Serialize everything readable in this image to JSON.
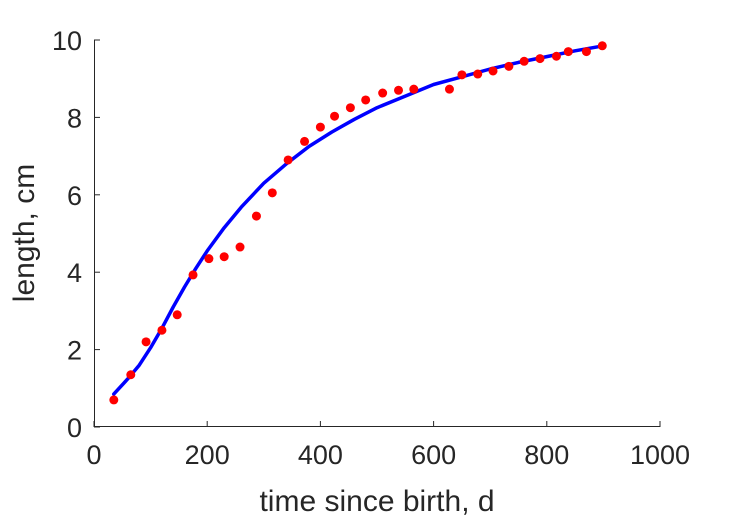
{
  "chart_data": {
    "type": "scatter",
    "xlabel": "time since birth, d",
    "ylabel": "length, cm",
    "xlim": [
      0,
      1000
    ],
    "ylim": [
      0,
      10
    ],
    "xticks": [
      0,
      200,
      400,
      600,
      800,
      1000
    ],
    "yticks": [
      0,
      2,
      4,
      6,
      8,
      10
    ],
    "grid": false,
    "colors": {
      "points": "#ff0000",
      "line": "#0000ff",
      "axes": "#262626"
    },
    "series": [
      {
        "type": "scatter",
        "x": [
          35,
          65,
          92,
          120,
          147,
          175,
          203,
          230,
          258,
          287,
          315,
          343,
          372,
          400,
          425,
          453,
          480,
          510,
          538,
          565,
          628,
          650,
          678,
          705,
          733,
          760,
          788,
          817,
          838,
          870,
          898
        ],
        "y": [
          0.7,
          1.35,
          2.2,
          2.5,
          2.9,
          3.93,
          4.35,
          4.4,
          4.65,
          5.45,
          6.05,
          6.9,
          7.38,
          7.75,
          8.03,
          8.25,
          8.45,
          8.63,
          8.7,
          8.73,
          8.73,
          9.1,
          9.12,
          9.2,
          9.32,
          9.45,
          9.52,
          9.58,
          9.7,
          9.7,
          9.85
        ]
      },
      {
        "type": "line",
        "x": [
          35,
          60,
          80,
          100,
          120,
          140,
          160,
          180,
          200,
          230,
          260,
          300,
          340,
          380,
          420,
          460,
          500,
          550,
          600,
          650,
          700,
          750,
          800,
          850,
          900
        ],
        "y": [
          0.85,
          1.25,
          1.6,
          2.05,
          2.55,
          3.1,
          3.62,
          4.1,
          4.55,
          5.15,
          5.68,
          6.3,
          6.8,
          7.25,
          7.62,
          7.95,
          8.25,
          8.55,
          8.85,
          9.05,
          9.25,
          9.42,
          9.57,
          9.72,
          9.85
        ]
      }
    ]
  }
}
